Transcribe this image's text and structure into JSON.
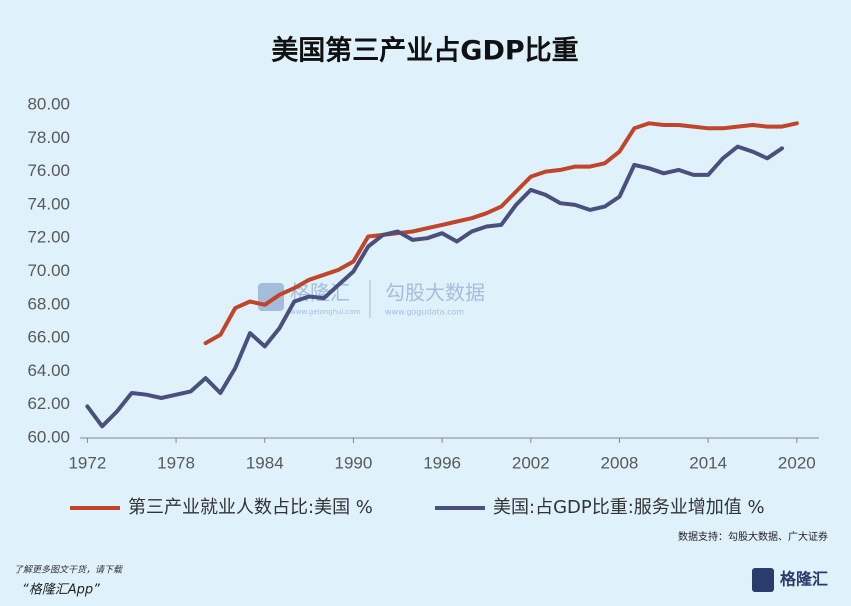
{
  "chart_data": {
    "type": "line",
    "title": "美国第三产业占GDP比重",
    "x": [
      1972,
      1973,
      1974,
      1975,
      1976,
      1977,
      1978,
      1979,
      1980,
      1981,
      1982,
      1983,
      1984,
      1985,
      1986,
      1987,
      1988,
      1989,
      1990,
      1991,
      1992,
      1993,
      1994,
      1995,
      1996,
      1997,
      1998,
      1999,
      2000,
      2001,
      2002,
      2003,
      2004,
      2005,
      2006,
      2007,
      2008,
      2009,
      2010,
      2011,
      2012,
      2013,
      2014,
      2015,
      2016,
      2017,
      2018,
      2019,
      2020
    ],
    "series": [
      {
        "name": "第三产业就业人数占比:美国 %",
        "color": "#c0452a",
        "values": [
          null,
          null,
          null,
          null,
          null,
          null,
          null,
          null,
          65.7,
          66.2,
          67.8,
          68.2,
          68.0,
          68.6,
          69.0,
          69.5,
          69.8,
          70.1,
          70.6,
          72.1,
          72.2,
          72.3,
          72.4,
          72.6,
          72.8,
          73.0,
          73.2,
          73.5,
          73.9,
          74.8,
          75.7,
          76.0,
          76.1,
          76.3,
          76.3,
          76.5,
          77.2,
          78.6,
          78.9,
          78.8,
          78.8,
          78.7,
          78.6,
          78.6,
          78.7,
          78.8,
          78.7,
          78.7,
          78.9
        ]
      },
      {
        "name": "美国:占GDP比重:服务业增加值 %",
        "color": "#4b4f7d",
        "values": [
          61.9,
          60.7,
          61.6,
          62.7,
          62.6,
          62.4,
          62.6,
          62.8,
          63.6,
          62.7,
          64.2,
          66.3,
          65.5,
          66.6,
          68.2,
          68.5,
          68.4,
          69.2,
          70.0,
          71.5,
          72.2,
          72.4,
          71.9,
          72.0,
          72.3,
          71.8,
          72.4,
          72.7,
          72.8,
          74.0,
          74.9,
          74.6,
          74.1,
          74.0,
          73.7,
          73.9,
          74.5,
          76.4,
          76.2,
          75.9,
          76.1,
          75.8,
          75.8,
          76.8,
          77.5,
          77.2,
          76.8,
          77.4,
          null
        ]
      }
    ],
    "xlim": [
      1971.5,
      2021.5
    ],
    "xticks": [
      1972,
      1978,
      1984,
      1990,
      1996,
      2002,
      2008,
      2014,
      2020
    ],
    "ylim": [
      60,
      80
    ],
    "yticks": [
      {
        "value": 60,
        "label": "60.00"
      },
      {
        "value": 62,
        "label": "62.00"
      },
      {
        "value": 64,
        "label": "64.00"
      },
      {
        "value": 66,
        "label": "66.00"
      },
      {
        "value": 68,
        "label": "68.00"
      },
      {
        "value": 70,
        "label": "70.00"
      },
      {
        "value": 72,
        "label": "72.00"
      },
      {
        "value": 74,
        "label": "74.00"
      },
      {
        "value": 76,
        "label": "76.00"
      },
      {
        "value": 78,
        "label": "78.00"
      },
      {
        "value": 80,
        "label": "80.00"
      }
    ],
    "grid": false,
    "source": "数据支持：勾股大数据、广大证券",
    "watermarks": [
      "格隆汇",
      "www.gelonghui.com",
      "勾股大数据",
      "www.gogudata.com"
    ]
  },
  "footer": {
    "line1": "了解更多图文干货，请下载",
    "line2": "“格隆汇App”",
    "logo": "格隆汇"
  }
}
